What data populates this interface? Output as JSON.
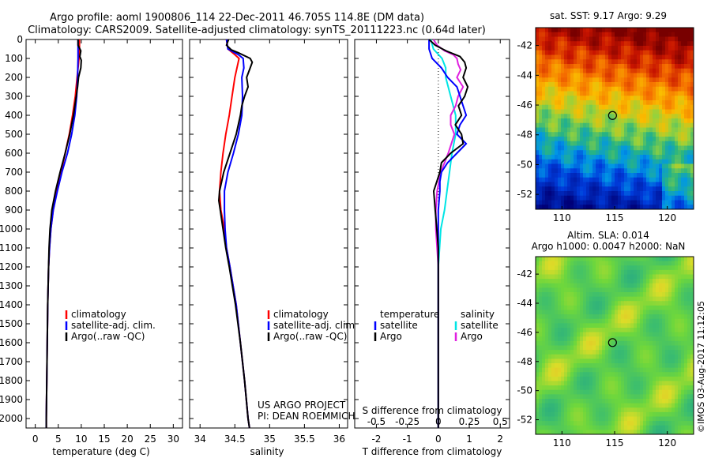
{
  "title_lines": [
    "Argo profile: aoml 1900806_114 22-Dec-2011 46.705S 114.8E (DM data)",
    "Climatology: CARS2009. Satellite-adjusted climatology: synTS_20111223.nc (0.64d later)"
  ],
  "colors": {
    "climatology": "#ff0000",
    "satellite": "#0000ff",
    "argo": "#000000",
    "temp_diff_sat": "#0000ff",
    "sal_diff_sat": "#00e5e5",
    "sal_diff_argo": "#e020e0"
  },
  "depth_axis": {
    "range": [
      0,
      2050
    ],
    "ticks": [
      0,
      100,
      200,
      300,
      400,
      500,
      600,
      700,
      800,
      900,
      1000,
      1100,
      1200,
      1300,
      1400,
      1500,
      1600,
      1700,
      1800,
      1900,
      2000
    ]
  },
  "panels": {
    "temperature": {
      "xlabel": "temperature (deg C)",
      "xlim": [
        -2,
        32
      ],
      "xticks": [
        0,
        5,
        10,
        15,
        20,
        25,
        30
      ],
      "legend": [
        "climatology",
        "satellite-adj. clim.",
        "Argo(..raw -QC)"
      ]
    },
    "salinity": {
      "xlabel": "salinity",
      "xlim": [
        33.85,
        36.12
      ],
      "xticks": [
        34,
        34.5,
        35,
        35.5,
        36
      ],
      "legend": [
        "climatology",
        "satellite-adj. clim.",
        "Argo(..raw -QC)"
      ],
      "note_lines": [
        "US ARGO PROJECT",
        "PI: DEAN ROEMMICH"
      ]
    },
    "difference": {
      "xlabel": "T difference from climatology",
      "xlim": [
        -2.7,
        2.3
      ],
      "xticks": [
        -2,
        -1,
        0,
        1,
        2
      ],
      "s_axis_label": "S difference from climatology",
      "s_ticks_labels": [
        "-0.5",
        "-0.25",
        "0",
        "0.25",
        "0.5"
      ],
      "s_ticks_positions_T": [
        -2,
        -1,
        0,
        1,
        2
      ],
      "legend_temp_title": "temperature",
      "legend_sal_title": "salinity",
      "legend_temp_items": [
        "satellite",
        "Argo"
      ],
      "legend_sal_items": [
        "satellite",
        "Argo"
      ]
    },
    "map_sst": {
      "title": "sat. SST: 9.17  Argo: 9.29",
      "xticks": [
        110,
        115,
        120
      ],
      "yticks": [
        -42,
        -44,
        -46,
        -48,
        -50,
        -52
      ],
      "xlim": [
        107.5,
        122.5
      ],
      "ylim": [
        -53,
        -40.8
      ],
      "marker": [
        114.8,
        -46.7
      ]
    },
    "map_sla": {
      "title_lines": [
        "Altim. SLA: 0.014",
        "Argo h1000: 0.0047  h2000: NaN"
      ],
      "xticks": [
        110,
        115,
        120
      ],
      "yticks": [
        -42,
        -44,
        -46,
        -48,
        -50,
        -52
      ],
      "xlim": [
        107.5,
        122.5
      ],
      "ylim": [
        -53,
        -40.8
      ],
      "marker": [
        114.8,
        -46.7
      ]
    }
  },
  "side_stamp": "©IMOS 03-Aug-2017 11:12:05",
  "chart_data": [
    {
      "type": "line",
      "title": "",
      "xlabel": "temperature (deg C)",
      "ylabel": "",
      "xlim": [
        -2,
        32
      ],
      "ylim": [
        0,
        2050
      ],
      "series": [
        {
          "name": "climatology",
          "depth": [
            0,
            50,
            100,
            200,
            300,
            400,
            500,
            600,
            700,
            800,
            900,
            1000,
            1100,
            1200,
            1400,
            1600,
            1800,
            2000,
            2050
          ],
          "values": [
            9.6,
            9.6,
            9.5,
            9.1,
            8.7,
            8.1,
            7.4,
            6.5,
            5.6,
            4.7,
            3.9,
            3.4,
            3.1,
            2.9,
            2.7,
            2.6,
            2.5,
            2.4,
            2.4
          ]
        },
        {
          "name": "satellite-adj. clim.",
          "depth": [
            0,
            50,
            100,
            200,
            300,
            400,
            500,
            600,
            700,
            800,
            900,
            1000,
            1100,
            1200,
            1400,
            1600,
            1800,
            2000,
            2050
          ],
          "values": [
            9.3,
            9.3,
            9.3,
            9.2,
            9.0,
            8.6,
            7.9,
            7.0,
            5.8,
            4.8,
            3.9,
            3.4,
            3.1,
            2.9,
            2.7,
            2.6,
            2.5,
            2.4,
            2.4
          ]
        },
        {
          "name": "Argo(..raw -QC)",
          "depth": [
            0,
            30,
            60,
            90,
            110,
            150,
            200,
            250,
            300,
            400,
            500,
            600,
            700,
            800,
            900,
            1000,
            1100,
            1200,
            1400,
            1600,
            1800,
            2000,
            2050
          ],
          "values": [
            9.3,
            9.3,
            9.9,
            9.7,
            10.0,
            9.9,
            9.4,
            9.2,
            8.9,
            8.3,
            7.5,
            6.5,
            5.4,
            4.4,
            3.6,
            3.2,
            3.0,
            2.9,
            2.7,
            2.6,
            2.5,
            2.4,
            2.4
          ]
        }
      ]
    },
    {
      "type": "line",
      "title": "",
      "xlabel": "salinity",
      "ylabel": "",
      "xlim": [
        33.85,
        36.12
      ],
      "ylim": [
        0,
        2050
      ],
      "series": [
        {
          "name": "climatology",
          "depth": [
            0,
            50,
            80,
            100,
            200,
            300,
            400,
            500,
            600,
            700,
            800,
            900,
            1000,
            1100,
            1200,
            1400,
            1600,
            1800,
            2000,
            2050
          ],
          "values": [
            34.38,
            34.4,
            34.5,
            34.56,
            34.5,
            34.46,
            34.42,
            34.37,
            34.33,
            34.3,
            34.28,
            34.3,
            34.35,
            34.38,
            34.43,
            34.52,
            34.58,
            34.64,
            34.69,
            34.71
          ]
        },
        {
          "name": "satellite-adj. clim.",
          "depth": [
            0,
            50,
            80,
            100,
            150,
            200,
            300,
            400,
            500,
            600,
            700,
            800,
            900,
            1000,
            1100,
            1200,
            1400,
            1600,
            1800,
            2000,
            2050
          ],
          "values": [
            34.38,
            34.4,
            34.55,
            34.62,
            34.63,
            34.6,
            34.61,
            34.6,
            34.55,
            34.48,
            34.4,
            34.35,
            34.35,
            34.36,
            34.38,
            34.43,
            34.52,
            34.58,
            34.64,
            34.69,
            34.71
          ]
        },
        {
          "name": "Argo(..raw -QC)",
          "depth": [
            0,
            30,
            55,
            70,
            100,
            120,
            150,
            200,
            250,
            300,
            350,
            400,
            500,
            600,
            700,
            800,
            850,
            900,
            1000,
            1100,
            1200,
            1400,
            1600,
            1800,
            2000,
            2050
          ],
          "values": [
            34.41,
            34.38,
            34.45,
            34.55,
            34.72,
            34.75,
            34.72,
            34.67,
            34.69,
            34.64,
            34.6,
            34.58,
            34.52,
            34.43,
            34.34,
            34.28,
            34.27,
            34.29,
            34.33,
            34.37,
            34.42,
            34.51,
            34.58,
            34.64,
            34.69,
            34.71
          ]
        }
      ]
    },
    {
      "type": "line",
      "title": "",
      "xlabel": "T difference from climatology",
      "ylabel": "",
      "xlim": [
        -2.7,
        2.3
      ],
      "ylim": [
        0,
        2050
      ],
      "series": [
        {
          "name": "temperature satellite",
          "depth": [
            0,
            50,
            100,
            150,
            200,
            250,
            300,
            350,
            400,
            450,
            500,
            550,
            600,
            650,
            700,
            750,
            800,
            900,
            1000,
            1100,
            1200,
            1400,
            1600,
            1800,
            2000,
            2050
          ],
          "values": [
            -0.3,
            -0.3,
            -0.2,
            0.1,
            0.3,
            0.6,
            0.7,
            0.8,
            0.9,
            0.7,
            0.6,
            0.9,
            0.6,
            0.3,
            0.1,
            0.05,
            0.05,
            0.0,
            0.0,
            0.0,
            0.0,
            0.0,
            0.0,
            0.0,
            0.0,
            0.0
          ]
        },
        {
          "name": "temperature Argo",
          "depth": [
            0,
            30,
            60,
            90,
            120,
            150,
            200,
            250,
            300,
            350,
            400,
            450,
            500,
            550,
            600,
            650,
            700,
            800,
            900,
            1000,
            1100,
            1200,
            1400,
            1600,
            1800,
            2000,
            2050
          ],
          "values": [
            -0.3,
            -0.1,
            0.25,
            0.7,
            0.85,
            0.9,
            0.8,
            0.95,
            0.85,
            0.65,
            0.75,
            0.55,
            0.75,
            0.8,
            0.4,
            0.1,
            0.05,
            -0.15,
            -0.1,
            -0.05,
            0.0,
            0.0,
            0.0,
            0.0,
            0.0,
            0.0,
            0.0
          ]
        },
        {
          "name": "salinity satellite",
          "depth": [
            0,
            50,
            100,
            150,
            200,
            300,
            400,
            500,
            600,
            700,
            800,
            900,
            1000,
            1100,
            1200,
            1400,
            1600,
            1800,
            2000,
            2050
          ],
          "values": [
            -0.06,
            -0.04,
            0.03,
            0.06,
            0.06,
            0.1,
            0.14,
            0.14,
            0.11,
            0.09,
            0.07,
            0.05,
            0.02,
            0.01,
            0.0,
            0.0,
            0.0,
            0.0,
            0.0,
            0.0
          ]
        },
        {
          "name": "salinity Argo",
          "depth": [
            0,
            30,
            60,
            80,
            100,
            130,
            160,
            200,
            250,
            300,
            350,
            400,
            450,
            500,
            600,
            700,
            800,
            900,
            1000,
            1100,
            1200,
            1400,
            1600,
            1800,
            2000,
            2050
          ],
          "values": [
            -0.04,
            -0.01,
            0.05,
            0.12,
            0.15,
            0.16,
            0.18,
            0.15,
            0.2,
            0.16,
            0.14,
            0.1,
            0.1,
            0.13,
            0.08,
            0.02,
            -0.01,
            -0.02,
            -0.02,
            -0.01,
            0.0,
            0.0,
            0.0,
            0.0,
            0.0,
            0.0
          ]
        }
      ]
    }
  ]
}
